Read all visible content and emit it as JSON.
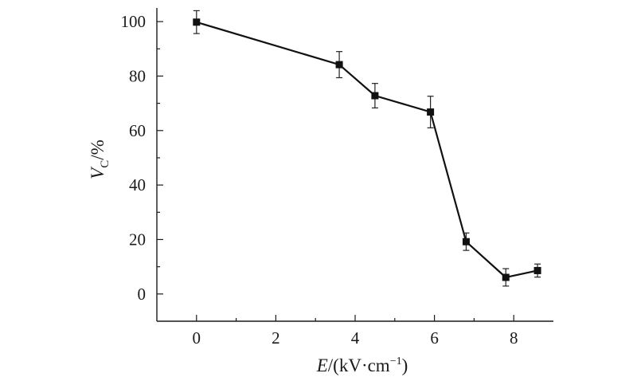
{
  "chart_data": {
    "type": "line",
    "xlabel": {
      "var": "E",
      "unit": "/(kV·cm",
      "sup": "−1",
      "close": ")"
    },
    "ylabel": {
      "var": "V",
      "sub": "C",
      "unit": "/%"
    },
    "xlim": [
      -1,
      9
    ],
    "ylim": [
      -10,
      105
    ],
    "xticks_major": [
      0,
      2,
      4,
      6,
      8
    ],
    "xticks_minor": [
      1,
      3,
      5,
      7
    ],
    "yticks_major": [
      0,
      20,
      40,
      60,
      80,
      100
    ],
    "yticks_minor": [
      10,
      30,
      50,
      70,
      90
    ],
    "grid": false,
    "series": [
      {
        "x": [
          0,
          3.6,
          4.5,
          5.9,
          6.8,
          7.8,
          8.6
        ],
        "y": [
          99.8,
          84.2,
          72.8,
          66.8,
          19.2,
          6.1,
          8.6
        ],
        "err": [
          4.2,
          4.8,
          4.5,
          5.8,
          3.2,
          3.2,
          2.4
        ],
        "marker": "square",
        "color": "#111111"
      }
    ]
  }
}
